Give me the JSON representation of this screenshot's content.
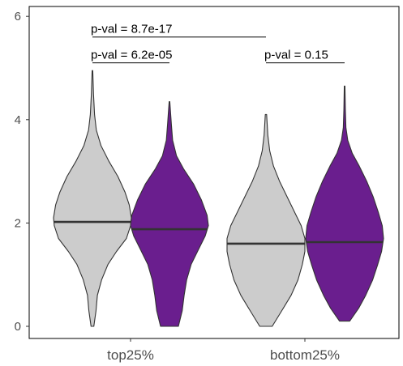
{
  "chart_data": {
    "type": "violin",
    "categories": [
      "top25%",
      "bottom25%"
    ],
    "ylim": [
      -0.2,
      6.1
    ],
    "yticks": [
      0,
      2,
      4,
      6
    ],
    "grid": false,
    "series": [
      {
        "color": "#cccccc",
        "violins": [
          {
            "category": "top25%",
            "min": 0.0,
            "max": 4.95,
            "median": 2.02,
            "profile": [
              [
                0.0,
                0.2
              ],
              [
                0.3,
                0.5
              ],
              [
                0.6,
                0.7
              ],
              [
                0.9,
                1.3
              ],
              [
                1.2,
                2.2
              ],
              [
                1.45,
                3.4
              ],
              [
                1.7,
                4.8
              ],
              [
                1.95,
                5.4
              ],
              [
                2.1,
                5.5
              ],
              [
                2.35,
                5.2
              ],
              [
                2.6,
                4.6
              ],
              [
                2.9,
                3.6
              ],
              [
                3.2,
                2.3
              ],
              [
                3.5,
                1.2
              ],
              [
                3.8,
                0.55
              ],
              [
                4.1,
                0.3
              ],
              [
                4.5,
                0.15
              ],
              [
                4.95,
                0.05
              ]
            ]
          },
          {
            "category": "bottom25%",
            "min": 0.0,
            "max": 4.1,
            "median": 1.6,
            "profile": [
              [
                0.0,
                1.0
              ],
              [
                0.3,
                2.5
              ],
              [
                0.6,
                4.0
              ],
              [
                0.9,
                5.1
              ],
              [
                1.2,
                5.8
              ],
              [
                1.45,
                6.2
              ],
              [
                1.7,
                6.2
              ],
              [
                1.95,
                5.6
              ],
              [
                2.2,
                4.6
              ],
              [
                2.5,
                3.4
              ],
              [
                2.8,
                2.2
              ],
              [
                3.1,
                1.2
              ],
              [
                3.4,
                0.6
              ],
              [
                3.7,
                0.3
              ],
              [
                4.1,
                0.1
              ]
            ]
          }
        ]
      },
      {
        "color": "#6a1e8e",
        "violins": [
          {
            "category": "top25%",
            "min": 0.0,
            "max": 4.35,
            "median": 1.88,
            "profile": [
              [
                0.0,
                1.4
              ],
              [
                0.3,
                2.0
              ],
              [
                0.6,
                2.3
              ],
              [
                0.9,
                2.7
              ],
              [
                1.2,
                3.4
              ],
              [
                1.5,
                4.6
              ],
              [
                1.75,
                5.6
              ],
              [
                1.95,
                6.1
              ],
              [
                2.15,
                5.9
              ],
              [
                2.45,
                5.0
              ],
              [
                2.75,
                3.8
              ],
              [
                3.05,
                2.2
              ],
              [
                3.3,
                1.1
              ],
              [
                3.6,
                0.5
              ],
              [
                3.9,
                0.3
              ],
              [
                4.35,
                0.05
              ]
            ]
          },
          {
            "category": "bottom25%",
            "min": 0.1,
            "max": 4.65,
            "median": 1.63,
            "profile": [
              [
                0.1,
                0.8
              ],
              [
                0.35,
                2.2
              ],
              [
                0.6,
                3.3
              ],
              [
                0.9,
                4.4
              ],
              [
                1.2,
                5.2
              ],
              [
                1.45,
                5.8
              ],
              [
                1.7,
                6.1
              ],
              [
                1.95,
                5.9
              ],
              [
                2.2,
                5.3
              ],
              [
                2.5,
                4.5
              ],
              [
                2.8,
                3.5
              ],
              [
                3.1,
                2.3
              ],
              [
                3.35,
                1.2
              ],
              [
                3.6,
                0.5
              ],
              [
                3.85,
                0.2
              ],
              [
                4.2,
                0.12
              ],
              [
                4.65,
                0.05
              ]
            ]
          }
        ]
      }
    ],
    "annotations": [
      {
        "text": "p-val = 8.7e-17",
        "y": 5.6,
        "from": 0,
        "to": 2
      },
      {
        "text": "p-val = 6.2e-05",
        "y": 5.1,
        "from": 0,
        "to": 1
      },
      {
        "text": "p-val = 0.15",
        "y": 5.1,
        "from": 2,
        "to": 3
      }
    ]
  }
}
